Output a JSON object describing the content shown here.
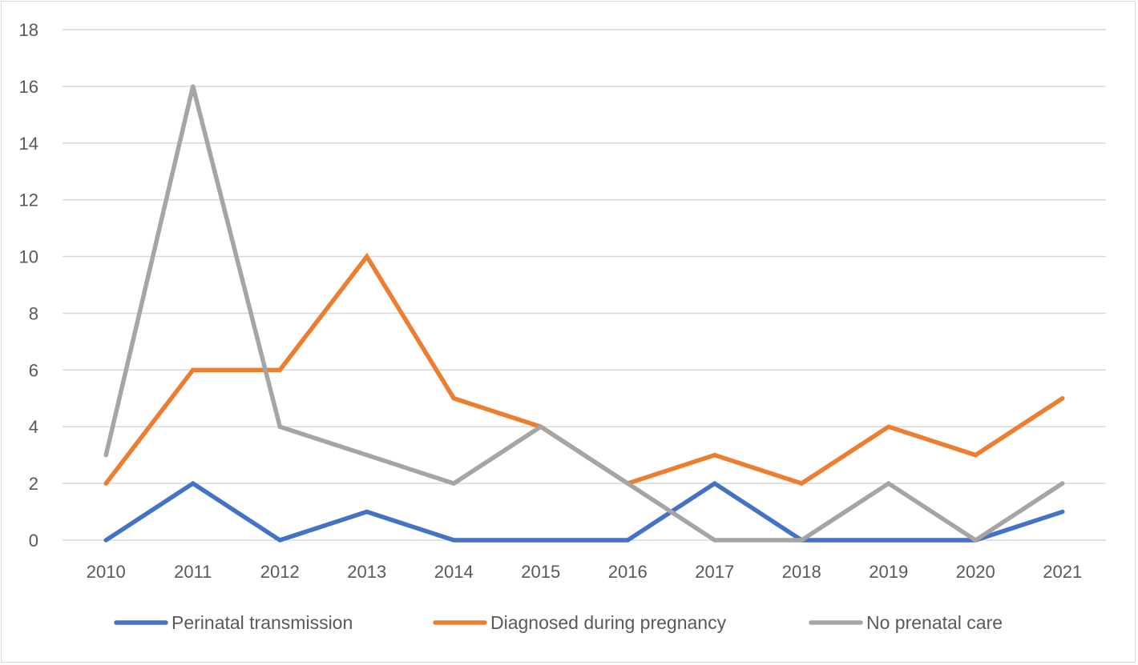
{
  "chart_data": {
    "type": "line",
    "categories": [
      "2010",
      "2011",
      "2012",
      "2013",
      "2014",
      "2015",
      "2016",
      "2017",
      "2018",
      "2019",
      "2020",
      "2021"
    ],
    "series": [
      {
        "name": "Perinatal transmission",
        "color": "#4472C4",
        "values": [
          0,
          2,
          0,
          1,
          0,
          0,
          0,
          2,
          0,
          0,
          0,
          1
        ]
      },
      {
        "name": "Diagnosed during pregnancy",
        "color": "#ED7D31",
        "values": [
          2,
          6,
          6,
          10,
          5,
          4,
          2,
          3,
          2,
          4,
          3,
          5
        ]
      },
      {
        "name": "No prenatal care",
        "color": "#A5A5A5",
        "values": [
          3,
          16,
          4,
          3,
          2,
          4,
          2,
          0,
          0,
          2,
          0,
          2
        ]
      }
    ],
    "ylim": [
      0,
      18
    ],
    "yticks": [
      "0",
      "2",
      "4",
      "6",
      "8",
      "10",
      "12",
      "14",
      "16",
      "18"
    ],
    "grid": true,
    "legend_position": "bottom"
  }
}
